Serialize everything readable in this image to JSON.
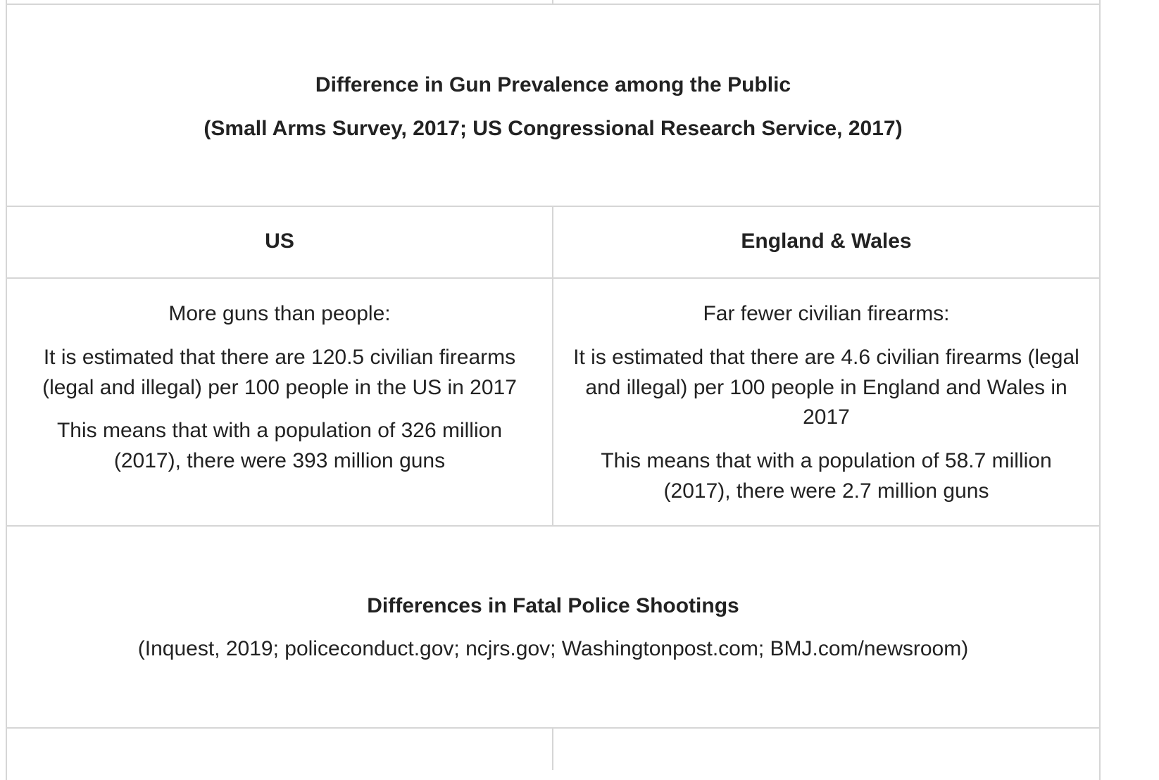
{
  "section1": {
    "title": "Difference in Gun Prevalence among the Public",
    "sources": "(Small Arms Survey, 2017; US Congressional Research Service, 2017)"
  },
  "columns": {
    "us": "US",
    "ew": "England & Wales"
  },
  "us_cell": {
    "heading": "More guns than people:",
    "p1_line1": "It is estimated that there are 120.5 civilian firearms",
    "p1_line2": "(legal and illegal) per 100 people in the US in 2017",
    "p2_line1": "This means that with a population of 326 million",
    "p2_line2": "(2017), there were 393 million guns"
  },
  "ew_cell": {
    "heading": "Far fewer civilian firearms:",
    "p1_line1": "It is estimated that there are 4.6 civilian firearms (legal",
    "p1_line2": "and illegal) per 100 people in England and Wales in",
    "p1_line3": "2017",
    "p2_line1": "This means that with a population of 58.7 million",
    "p2_line2": "(2017), there were 2.7 million guns"
  },
  "section2": {
    "title": "Differences in Fatal Police Shootings",
    "sources": "(Inquest, 2019; policeconduct.gov; ncjrs.gov; Washingtonpost.com; BMJ.com/newsroom)"
  }
}
